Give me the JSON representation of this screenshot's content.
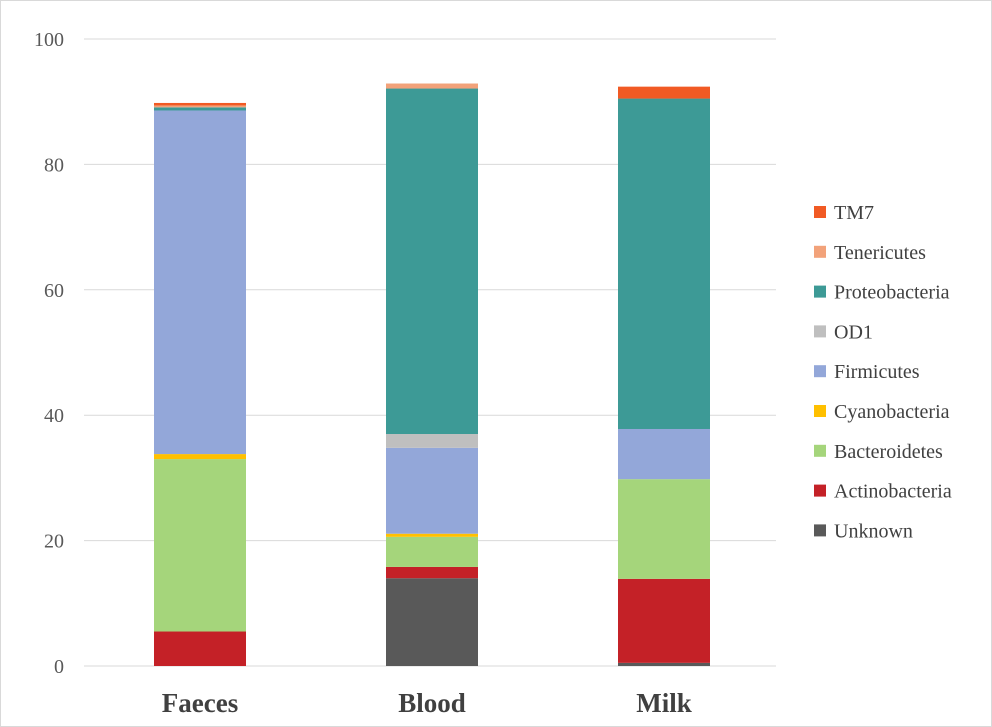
{
  "chart_data": {
    "type": "bar",
    "stacked": true,
    "categories": [
      "Faeces",
      "Blood",
      "Milk"
    ],
    "series": [
      {
        "name": "Unknown",
        "color": "#595959",
        "values": [
          0,
          14.0,
          0.5
        ]
      },
      {
        "name": "Actinobacteria",
        "color": "#c42127",
        "values": [
          5.5,
          1.8,
          13.4
        ]
      },
      {
        "name": "Bacteroidetes",
        "color": "#a5d57b",
        "values": [
          27.5,
          4.8,
          15.9
        ]
      },
      {
        "name": "Cyanobacteria",
        "color": "#ffc000",
        "values": [
          0.8,
          0.5,
          0
        ]
      },
      {
        "name": "Firmicutes",
        "color": "#93a7d9",
        "values": [
          54.8,
          13.7,
          8.0
        ]
      },
      {
        "name": "OD1",
        "color": "#bfbfbf",
        "values": [
          0,
          2.2,
          0
        ]
      },
      {
        "name": "Proteobacteria",
        "color": "#3d9a96",
        "values": [
          0.5,
          55.1,
          52.7
        ]
      },
      {
        "name": "Tenericutes",
        "color": "#f2a27a",
        "values": [
          0.3,
          0.8,
          0
        ]
      },
      {
        "name": "TM7",
        "color": "#f15a24",
        "values": [
          0.4,
          0,
          1.9
        ]
      }
    ],
    "legend_order": [
      "TM7",
      "Tenericutes",
      "Proteobacteria",
      "OD1",
      "Firmicutes",
      "Cyanobacteria",
      "Bacteroidetes",
      "Actinobacteria",
      "Unknown"
    ],
    "ylim": [
      0,
      100
    ],
    "yticks": [
      0,
      20,
      40,
      60,
      80,
      100
    ],
    "grid": true,
    "legend_position": "right",
    "title": "",
    "xlabel": "",
    "ylabel": ""
  }
}
